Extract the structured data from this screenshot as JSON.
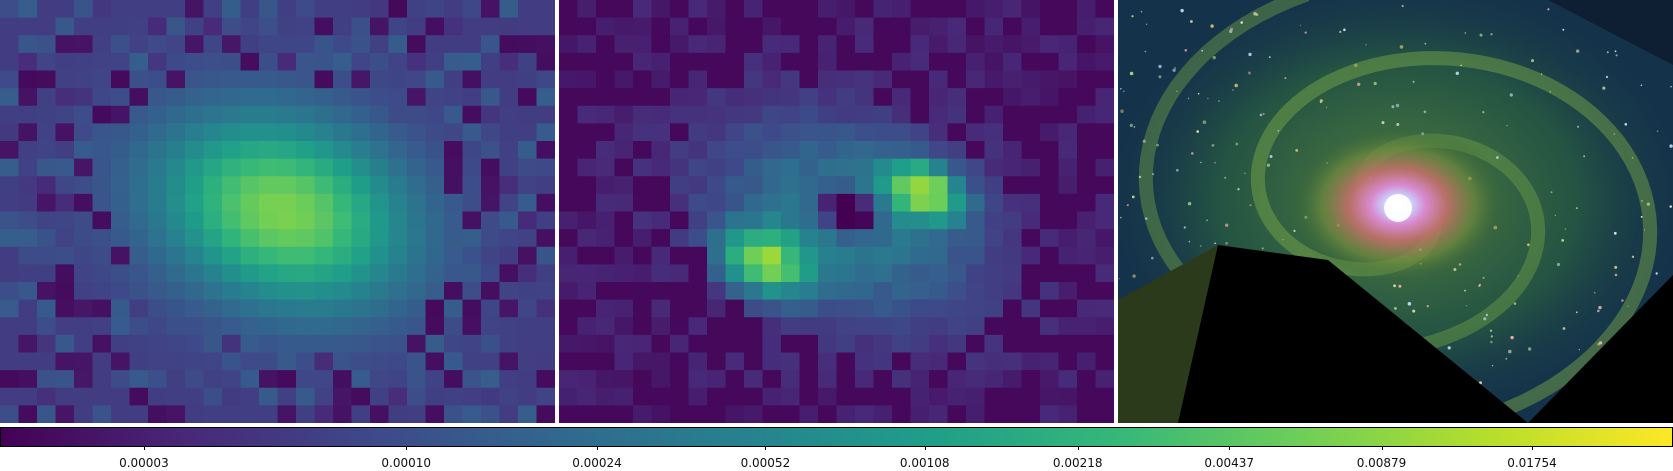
{
  "chart_data": [
    {
      "type": "heatmap",
      "title": "",
      "colormap": "viridis",
      "description_of_content": "single bright central source",
      "peak_value": 0.0175
    },
    {
      "type": "heatmap",
      "title": "",
      "colormap": "viridis",
      "peak_value": 0.0175
    },
    {
      "type": "image",
      "title": "",
      "subject": "spiral galaxy"
    }
  ],
  "colorbar": {
    "colormap": "viridis",
    "scale": "log",
    "ticks": [
      "0.00003",
      "0.00010",
      "0.00024",
      "0.00052",
      "0.00108",
      "0.00218",
      "0.00437",
      "0.00879",
      "0.01754"
    ],
    "tick_values": [
      3e-05,
      0.0001,
      0.00024,
      0.00052,
      0.00108,
      0.00218,
      0.00437,
      0.00879,
      0.01754
    ],
    "range": [
      1.55e-05,
      0.0335
    ]
  },
  "colors": {
    "viridis": [
      "#440154",
      "#482878",
      "#3e4989",
      "#31688e",
      "#26828e",
      "#1f9e89",
      "#35b779",
      "#6ece58",
      "#b5de2b",
      "#fde725"
    ]
  }
}
